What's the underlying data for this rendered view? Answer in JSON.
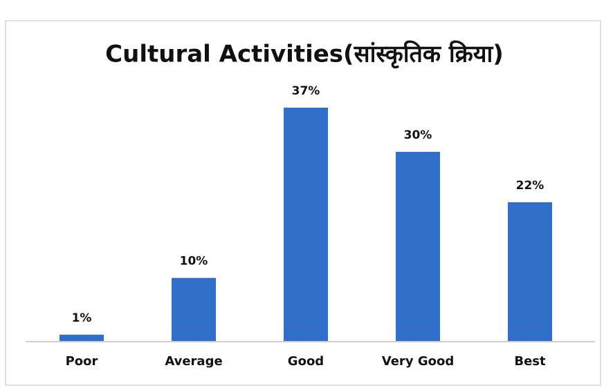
{
  "chart_data": {
    "type": "bar",
    "title": "Cultural Activities(सांस्कृतिक क्रिया)",
    "categories": [
      "Poor",
      "Average",
      "Good",
      "Very Good",
      "Best"
    ],
    "values": [
      1,
      10,
      37,
      30,
      22
    ],
    "value_labels": [
      "1%",
      "10%",
      "37%",
      "30%",
      "22%"
    ],
    "color": "#2f6fc9"
  }
}
